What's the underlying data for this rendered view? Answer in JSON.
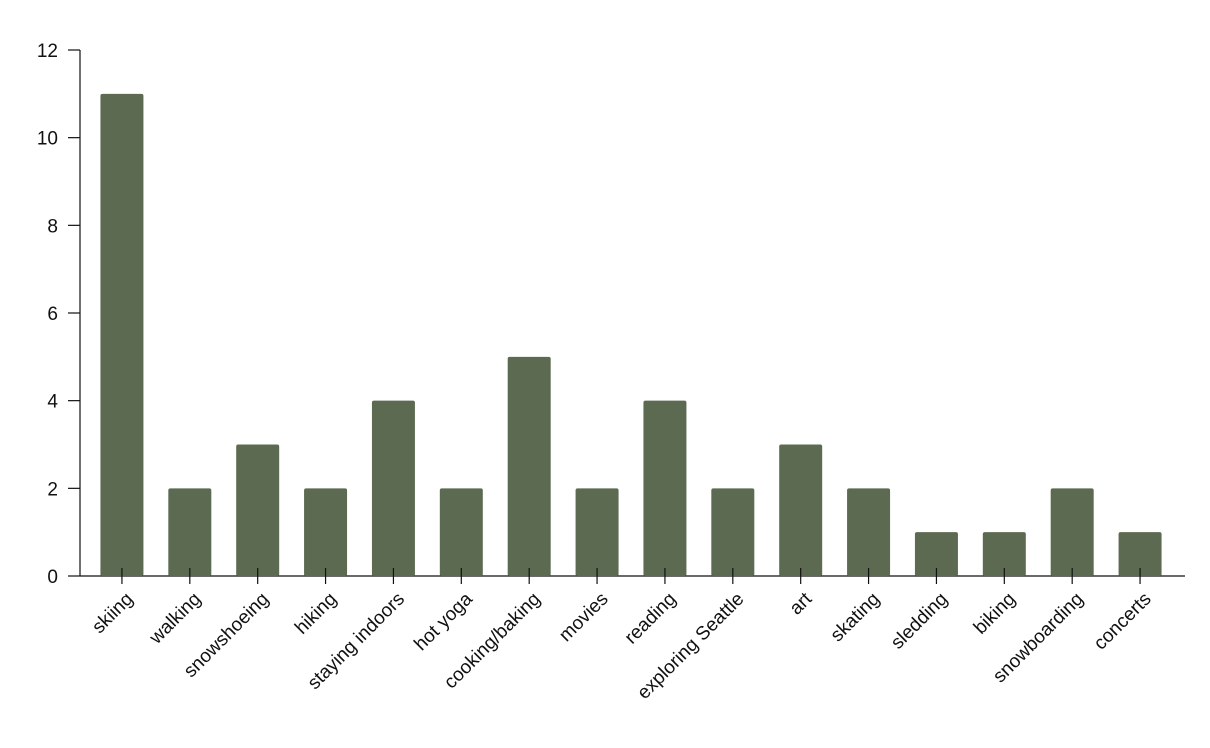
{
  "chart_data": {
    "type": "bar",
    "categories": [
      "skiing",
      "walking",
      "snowshoeing",
      "hiking",
      "staying indoors",
      "hot yoga",
      "cooking/baking",
      "movies",
      "reading",
      "exploring Seattle",
      "art",
      "skating",
      "sledding",
      "biking",
      "snowboarding",
      "concerts"
    ],
    "values": [
      11,
      2,
      3,
      2,
      4,
      2,
      5,
      2,
      4,
      2,
      3,
      2,
      1,
      1,
      2,
      1
    ],
    "color": "#5d6a52",
    "ylim": [
      0,
      12
    ],
    "yticks": [
      0,
      2,
      4,
      6,
      8,
      10,
      12
    ],
    "grid": false
  }
}
